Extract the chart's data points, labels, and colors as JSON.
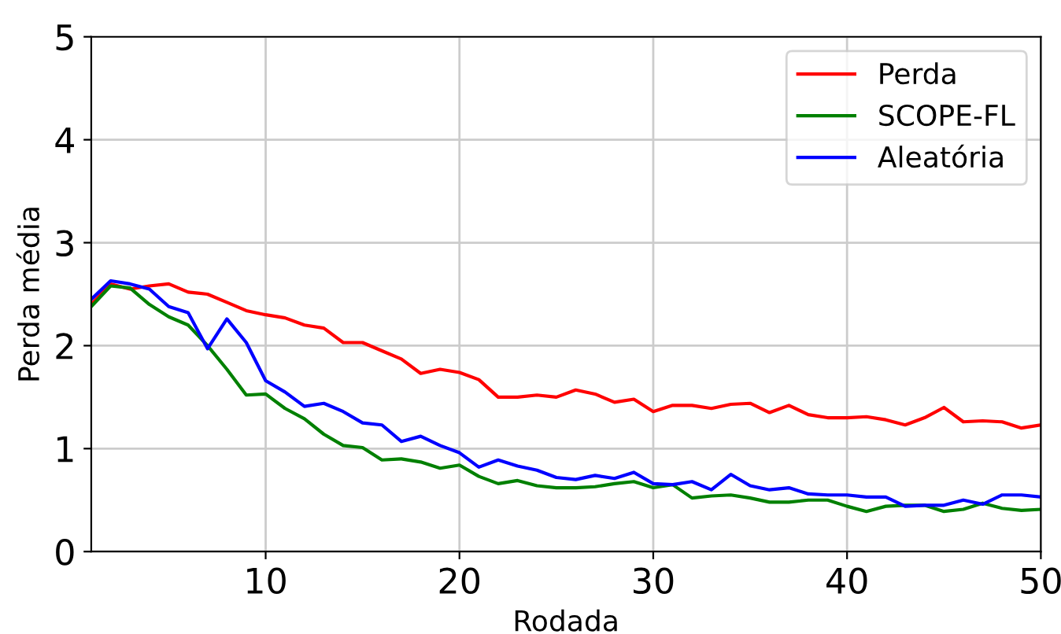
{
  "chart_data": {
    "type": "line",
    "xlabel": "Rodada",
    "ylabel": "Perda média",
    "x": [
      1,
      2,
      3,
      4,
      5,
      6,
      7,
      8,
      9,
      10,
      11,
      12,
      13,
      14,
      15,
      16,
      17,
      18,
      19,
      20,
      21,
      22,
      23,
      24,
      25,
      26,
      27,
      28,
      29,
      30,
      31,
      32,
      33,
      34,
      35,
      36,
      37,
      38,
      39,
      40,
      41,
      42,
      43,
      44,
      45,
      46,
      47,
      48,
      49,
      50
    ],
    "xlim": [
      1,
      50
    ],
    "xticks": [
      10,
      20,
      30,
      40,
      50
    ],
    "ylim": [
      0,
      5
    ],
    "yticks": [
      0,
      1,
      2,
      3,
      4,
      5
    ],
    "grid": true,
    "legend": "top right",
    "marker": "none",
    "line_style": "solid",
    "series": [
      {
        "name": "Perda",
        "color": "#ff0000",
        "values": [
          2.4,
          2.6,
          2.55,
          2.58,
          2.6,
          2.52,
          2.5,
          2.42,
          2.34,
          2.3,
          2.27,
          2.2,
          2.17,
          2.03,
          2.03,
          1.95,
          1.87,
          1.73,
          1.77,
          1.74,
          1.67,
          1.5,
          1.5,
          1.52,
          1.5,
          1.57,
          1.53,
          1.45,
          1.48,
          1.36,
          1.42,
          1.42,
          1.39,
          1.43,
          1.44,
          1.35,
          1.42,
          1.33,
          1.3,
          1.3,
          1.31,
          1.28,
          1.23,
          1.3,
          1.4,
          1.26,
          1.27,
          1.26,
          1.2,
          1.23
        ]
      },
      {
        "name": "SCOPE-FL",
        "color": "#008000",
        "values": [
          2.38,
          2.58,
          2.56,
          2.4,
          2.28,
          2.2,
          2.0,
          1.77,
          1.52,
          1.53,
          1.39,
          1.29,
          1.14,
          1.03,
          1.01,
          0.89,
          0.9,
          0.87,
          0.81,
          0.84,
          0.73,
          0.66,
          0.69,
          0.64,
          0.62,
          0.62,
          0.63,
          0.66,
          0.68,
          0.62,
          0.65,
          0.52,
          0.54,
          0.55,
          0.52,
          0.48,
          0.48,
          0.5,
          0.5,
          0.44,
          0.39,
          0.44,
          0.45,
          0.45,
          0.39,
          0.41,
          0.47,
          0.42,
          0.4,
          0.41
        ]
      },
      {
        "name": "Aleatória",
        "color": "#0000ff",
        "values": [
          2.45,
          2.63,
          2.6,
          2.55,
          2.38,
          2.32,
          1.97,
          2.26,
          2.03,
          1.66,
          1.55,
          1.41,
          1.44,
          1.36,
          1.25,
          1.23,
          1.07,
          1.12,
          1.03,
          0.96,
          0.82,
          0.89,
          0.83,
          0.79,
          0.72,
          0.7,
          0.74,
          0.71,
          0.77,
          0.66,
          0.65,
          0.68,
          0.6,
          0.75,
          0.64,
          0.6,
          0.62,
          0.56,
          0.55,
          0.55,
          0.53,
          0.53,
          0.44,
          0.45,
          0.45,
          0.5,
          0.46,
          0.55,
          0.55,
          0.53
        ]
      }
    ]
  }
}
